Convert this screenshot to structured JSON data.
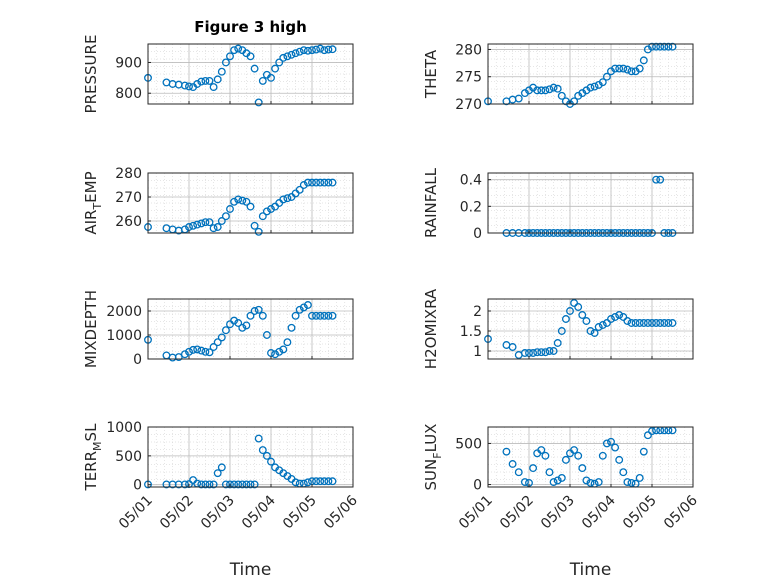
{
  "figure": {
    "title": "Figure 3 high",
    "xlabel": "Time",
    "date_ticks": [
      "05/01",
      "05/02",
      "05/03",
      "05/04",
      "05/05",
      "05/06"
    ]
  },
  "colors": {
    "marker": "#0072BD",
    "grid": "#cccccc",
    "axis": "#262626"
  },
  "chart_data": [
    {
      "type": "scatter",
      "ylabel": "PRESSURE",
      "ylim": [
        765,
        960
      ],
      "yticks": [
        800,
        900
      ],
      "grid": true,
      "x": [
        1.0,
        1.45,
        1.6,
        1.75,
        1.9,
        2.0,
        2.1,
        2.2,
        2.3,
        2.4,
        2.5,
        2.6,
        2.7,
        2.8,
        2.9,
        3.0,
        3.1,
        3.2,
        3.3,
        3.4,
        3.5,
        3.6,
        3.7,
        3.8,
        3.9,
        4.0,
        4.1,
        4.2,
        4.3,
        4.4,
        4.5,
        4.6,
        4.7,
        4.8,
        4.9,
        5.0,
        5.1,
        5.2,
        5.3,
        5.4,
        5.5
      ],
      "y": [
        850,
        835,
        830,
        828,
        825,
        822,
        820,
        830,
        838,
        840,
        840,
        820,
        845,
        870,
        900,
        920,
        940,
        945,
        940,
        930,
        920,
        880,
        770,
        840,
        860,
        850,
        880,
        900,
        915,
        920,
        925,
        930,
        935,
        940,
        938,
        940,
        942,
        945,
        940,
        942,
        943
      ]
    },
    {
      "type": "scatter",
      "ylabel": "THETA",
      "ylim": [
        270,
        281
      ],
      "yticks": [
        270,
        275,
        280
      ],
      "grid": true,
      "x": [
        1.0,
        1.45,
        1.6,
        1.75,
        1.9,
        2.0,
        2.1,
        2.2,
        2.3,
        2.4,
        2.5,
        2.6,
        2.7,
        2.8,
        2.9,
        3.0,
        3.1,
        3.2,
        3.3,
        3.4,
        3.5,
        3.6,
        3.7,
        3.8,
        3.9,
        4.0,
        4.1,
        4.2,
        4.3,
        4.4,
        4.5,
        4.6,
        4.7,
        4.8,
        4.9,
        5.0,
        5.1,
        5.2,
        5.3,
        5.4,
        5.5
      ],
      "y": [
        270.5,
        270.5,
        270.8,
        271.0,
        272.0,
        272.5,
        273.0,
        272.5,
        272.5,
        272.5,
        272.7,
        273.0,
        272.8,
        271.5,
        270.5,
        270.0,
        270.5,
        271.5,
        272.0,
        272.5,
        273.0,
        273.2,
        273.5,
        274.0,
        275.0,
        276.0,
        276.5,
        276.5,
        276.5,
        276.3,
        276.0,
        276.0,
        276.5,
        278.0,
        280.0,
        280.5,
        280.5,
        280.5,
        280.5,
        280.5,
        280.5
      ]
    },
    {
      "type": "scatter",
      "ylabel": "AIR",
      "ylabel_sub": "T",
      "ylabel_rest": "EMP",
      "ylim": [
        255,
        280
      ],
      "yticks": [
        260,
        270,
        280
      ],
      "grid": true,
      "x": [
        1.0,
        1.45,
        1.6,
        1.75,
        1.9,
        2.0,
        2.1,
        2.2,
        2.3,
        2.4,
        2.5,
        2.6,
        2.7,
        2.8,
        2.9,
        3.0,
        3.1,
        3.2,
        3.3,
        3.4,
        3.5,
        3.6,
        3.7,
        3.8,
        3.9,
        4.0,
        4.1,
        4.2,
        4.3,
        4.4,
        4.5,
        4.6,
        4.7,
        4.8,
        4.9,
        5.0,
        5.1,
        5.2,
        5.3,
        5.4,
        5.5
      ],
      "y": [
        257.5,
        257.0,
        256.5,
        256.0,
        256.5,
        257.5,
        258.0,
        258.5,
        259.0,
        259.5,
        259.5,
        257.0,
        257.5,
        260.0,
        262.0,
        265.0,
        268.0,
        269.0,
        268.5,
        268.0,
        266.0,
        258.0,
        255.5,
        262.0,
        264.0,
        265.0,
        266.0,
        267.5,
        269.0,
        269.5,
        270.0,
        271.5,
        273.0,
        275.0,
        276.0,
        276.0,
        276.0,
        276.0,
        276.0,
        276.0,
        276.0
      ]
    },
    {
      "type": "scatter",
      "ylabel": "RAINFALL",
      "ylim": [
        0,
        0.45
      ],
      "yticks": [
        0,
        0.2,
        0.4
      ],
      "ytick_labels": [
        "0",
        "0.2",
        "0.4"
      ],
      "grid": true,
      "x": [
        1.45,
        1.6,
        1.75,
        1.9,
        2.0,
        2.1,
        2.2,
        2.3,
        2.4,
        2.5,
        2.6,
        2.7,
        2.8,
        2.9,
        3.0,
        3.1,
        3.2,
        3.3,
        3.4,
        3.5,
        3.6,
        3.7,
        3.8,
        3.9,
        4.0,
        4.1,
        4.2,
        4.3,
        4.4,
        4.5,
        4.6,
        4.7,
        4.8,
        4.9,
        5.0,
        5.1,
        5.2,
        5.3,
        5.4,
        5.5
      ],
      "y": [
        0,
        0,
        0,
        0,
        0,
        0,
        0,
        0,
        0,
        0,
        0,
        0,
        0,
        0,
        0,
        0,
        0,
        0,
        0,
        0,
        0,
        0,
        0,
        0,
        0,
        0,
        0,
        0,
        0,
        0,
        0,
        0,
        0,
        0,
        0,
        0.4,
        0.4,
        0,
        0,
        0
      ]
    },
    {
      "type": "scatter",
      "ylabel": "MIXDEPTH",
      "ylim": [
        0,
        2500
      ],
      "yticks": [
        0,
        1000,
        2000
      ],
      "grid": true,
      "x": [
        1.0,
        1.45,
        1.6,
        1.75,
        1.9,
        2.0,
        2.1,
        2.2,
        2.3,
        2.4,
        2.5,
        2.6,
        2.7,
        2.8,
        2.9,
        3.0,
        3.1,
        3.2,
        3.3,
        3.4,
        3.5,
        3.6,
        3.7,
        3.8,
        3.9,
        4.0,
        4.1,
        4.2,
        4.3,
        4.4,
        4.5,
        4.6,
        4.7,
        4.8,
        4.9,
        5.0,
        5.1,
        5.2,
        5.3,
        5.4,
        5.5
      ],
      "y": [
        800,
        150,
        60,
        80,
        200,
        300,
        380,
        400,
        350,
        300,
        280,
        500,
        700,
        900,
        1200,
        1450,
        1600,
        1500,
        1300,
        1400,
        1800,
        2000,
        2050,
        1800,
        1000,
        250,
        200,
        300,
        400,
        700,
        1300,
        1800,
        2050,
        2150,
        2250,
        1800,
        1800,
        1800,
        1800,
        1800,
        1800
      ]
    },
    {
      "type": "scatter",
      "ylabel": "H2OMIXRA",
      "ylim": [
        0.8,
        2.3
      ],
      "yticks": [
        1,
        1.5,
        2
      ],
      "ytick_labels": [
        "1",
        "1.5",
        "2"
      ],
      "grid": true,
      "x": [
        1.0,
        1.45,
        1.6,
        1.75,
        1.9,
        2.0,
        2.1,
        2.2,
        2.3,
        2.4,
        2.5,
        2.6,
        2.7,
        2.8,
        2.9,
        3.0,
        3.1,
        3.2,
        3.3,
        3.4,
        3.5,
        3.6,
        3.7,
        3.8,
        3.9,
        4.0,
        4.1,
        4.2,
        4.3,
        4.4,
        4.5,
        4.6,
        4.7,
        4.8,
        4.9,
        5.0,
        5.1,
        5.2,
        5.3,
        5.4,
        5.5
      ],
      "y": [
        1.3,
        1.15,
        1.1,
        0.9,
        0.95,
        0.95,
        0.95,
        0.97,
        0.97,
        0.97,
        1.0,
        1.0,
        1.2,
        1.5,
        1.8,
        2.0,
        2.2,
        2.1,
        1.9,
        1.75,
        1.5,
        1.45,
        1.6,
        1.65,
        1.7,
        1.8,
        1.85,
        1.9,
        1.85,
        1.75,
        1.7,
        1.7,
        1.7,
        1.7,
        1.7,
        1.7,
        1.7,
        1.7,
        1.7,
        1.7,
        1.7
      ]
    },
    {
      "type": "scatter",
      "ylabel": "TERR",
      "ylabel_sub": "M",
      "ylabel_rest": "SL",
      "ylim": [
        -40,
        1000
      ],
      "yticks": [
        0,
        500,
        1000
      ],
      "grid": true,
      "x": [
        1.0,
        1.45,
        1.6,
        1.75,
        1.9,
        2.0,
        2.1,
        2.2,
        2.3,
        2.4,
        2.5,
        2.6,
        2.7,
        2.8,
        2.9,
        3.0,
        3.1,
        3.2,
        3.3,
        3.4,
        3.5,
        3.6,
        3.7,
        3.8,
        3.9,
        4.0,
        4.1,
        4.2,
        4.3,
        4.4,
        4.5,
        4.6,
        4.7,
        4.8,
        4.9,
        5.0,
        5.1,
        5.2,
        5.3,
        5.4,
        5.5
      ],
      "y": [
        5,
        5,
        5,
        5,
        5,
        10,
        80,
        20,
        5,
        5,
        5,
        5,
        200,
        300,
        5,
        5,
        5,
        5,
        5,
        5,
        5,
        5,
        800,
        600,
        500,
        400,
        300,
        250,
        200,
        150,
        100,
        40,
        20,
        20,
        40,
        60,
        60,
        60,
        60,
        60,
        60
      ]
    },
    {
      "type": "scatter",
      "ylabel": "SUN",
      "ylabel_sub": "F",
      "ylabel_rest": "LUX",
      "ylim": [
        -30,
        700
      ],
      "yticks": [
        0,
        500
      ],
      "grid": true,
      "x": [
        1.45,
        1.6,
        1.75,
        1.9,
        2.0,
        2.1,
        2.2,
        2.3,
        2.4,
        2.5,
        2.6,
        2.7,
        2.8,
        2.9,
        3.0,
        3.1,
        3.2,
        3.3,
        3.4,
        3.5,
        3.6,
        3.7,
        3.8,
        3.9,
        4.0,
        4.1,
        4.2,
        4.3,
        4.4,
        4.5,
        4.6,
        4.7,
        4.8,
        4.9,
        5.0,
        5.1,
        5.2,
        5.3,
        5.4,
        5.5
      ],
      "y": [
        400,
        250,
        150,
        30,
        20,
        200,
        380,
        420,
        350,
        150,
        30,
        50,
        80,
        300,
        380,
        420,
        350,
        200,
        50,
        20,
        10,
        30,
        350,
        500,
        520,
        450,
        300,
        150,
        30,
        20,
        10,
        80,
        400,
        600,
        650,
        660,
        660,
        660,
        660,
        660
      ]
    }
  ]
}
